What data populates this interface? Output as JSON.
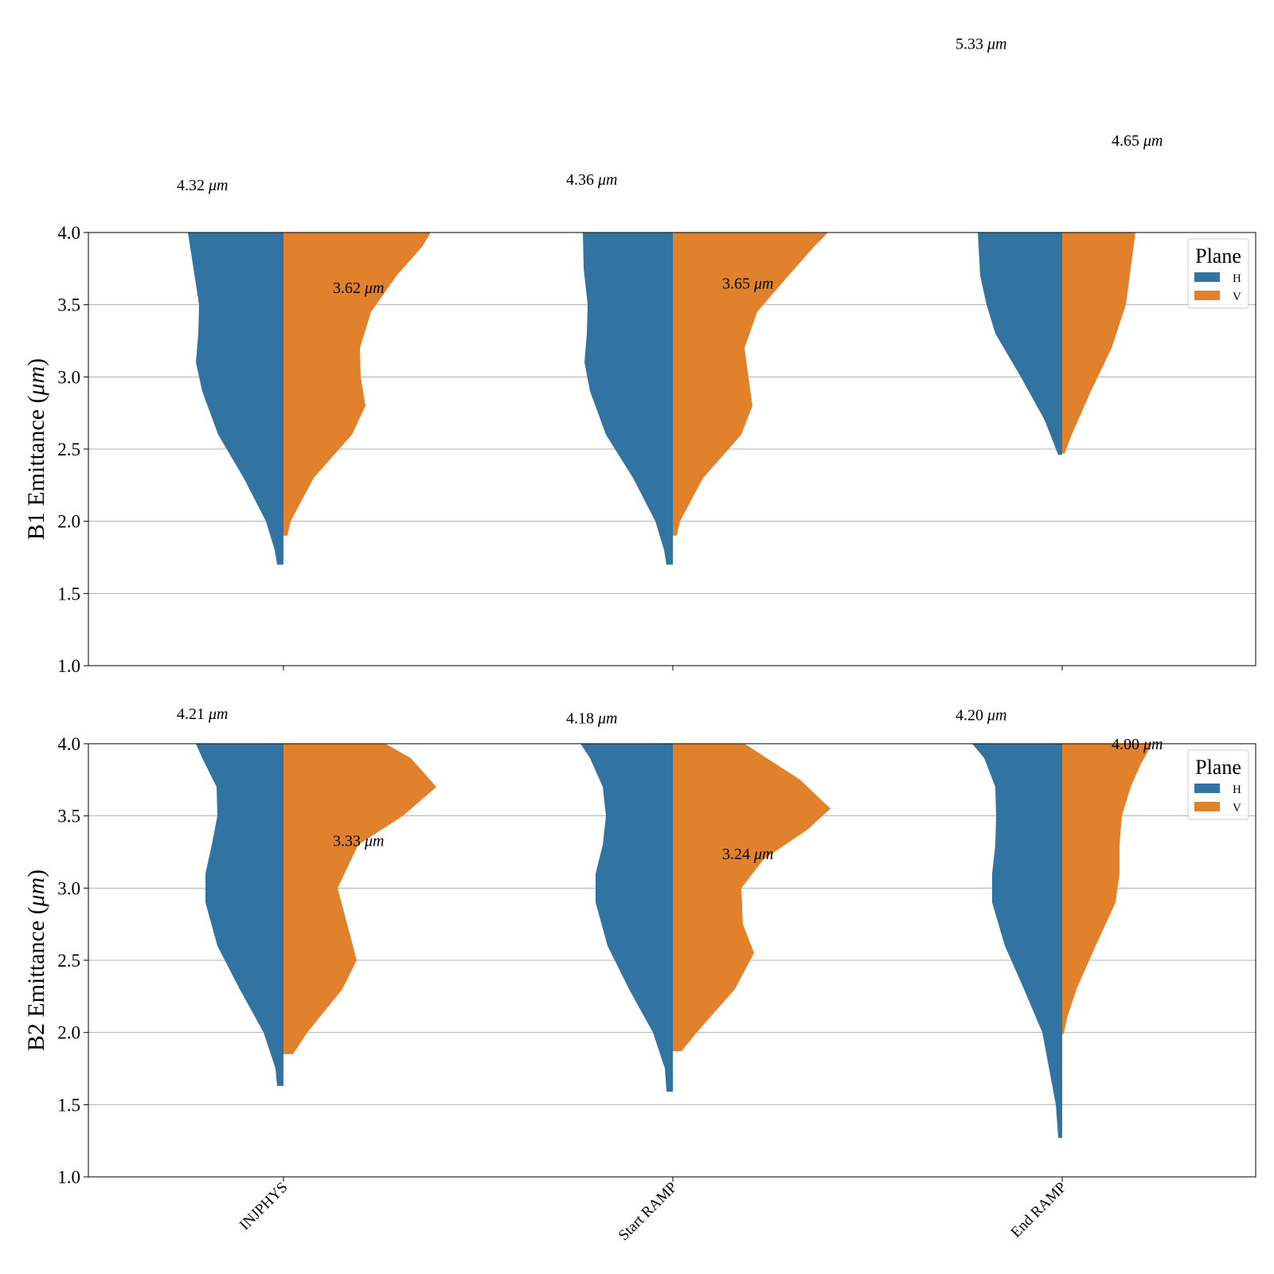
{
  "colors": {
    "H": "#3274a1",
    "V": "#e1812c",
    "grid": "#b0b0b0",
    "frame": "#000000"
  },
  "chart_data": [
    {
      "type": "violin",
      "ylabel": "B1 Emittance (μm)",
      "ylim": [
        1.0,
        4.0
      ],
      "yticks": [
        "1.0",
        "1.5",
        "2.0",
        "2.5",
        "3.0",
        "3.5",
        "4.0"
      ],
      "grid": true,
      "legend": {
        "title": "Plane",
        "entries": [
          "H",
          "V"
        ],
        "position": "top-right"
      },
      "categories": [
        "INJPHYS",
        "Start RAMP",
        "End RAMP"
      ],
      "series": [
        {
          "name": "H",
          "min": [
            1.7,
            1.7,
            2.46
          ],
          "annotations": [
            "4.32 μm",
            "4.36 μm",
            "5.33 μm"
          ],
          "annotation_y": [
            4.33,
            4.37,
            5.31
          ]
        },
        {
          "name": "V",
          "min": [
            1.9,
            1.9,
            2.47
          ],
          "annotations": [
            "3.62 μm",
            "3.65 μm",
            "4.65 μm"
          ],
          "annotation_y": [
            3.62,
            3.65,
            4.64
          ]
        }
      ]
    },
    {
      "type": "violin",
      "ylabel": "B2 Emittance (μm)",
      "ylim": [
        1.0,
        4.0
      ],
      "yticks": [
        "1.0",
        "1.5",
        "2.0",
        "2.5",
        "3.0",
        "3.5",
        "4.0"
      ],
      "grid": true,
      "legend": {
        "title": "Plane",
        "entries": [
          "H",
          "V"
        ],
        "position": "top-right"
      },
      "categories": [
        "INJPHYS",
        "Start RAMP",
        "End RAMP"
      ],
      "series": [
        {
          "name": "H",
          "min": [
            1.63,
            1.59,
            1.27
          ],
          "annotations": [
            "4.21 μm",
            "4.18 μm",
            "4.20 μm"
          ],
          "annotation_y": [
            4.21,
            4.18,
            4.2
          ]
        },
        {
          "name": "V",
          "min": [
            1.85,
            1.87,
            1.99
          ],
          "annotations": [
            "3.33 μm",
            "3.24 μm",
            "4.00 μm"
          ],
          "annotation_y": [
            3.33,
            3.24,
            4.0
          ]
        }
      ]
    }
  ]
}
